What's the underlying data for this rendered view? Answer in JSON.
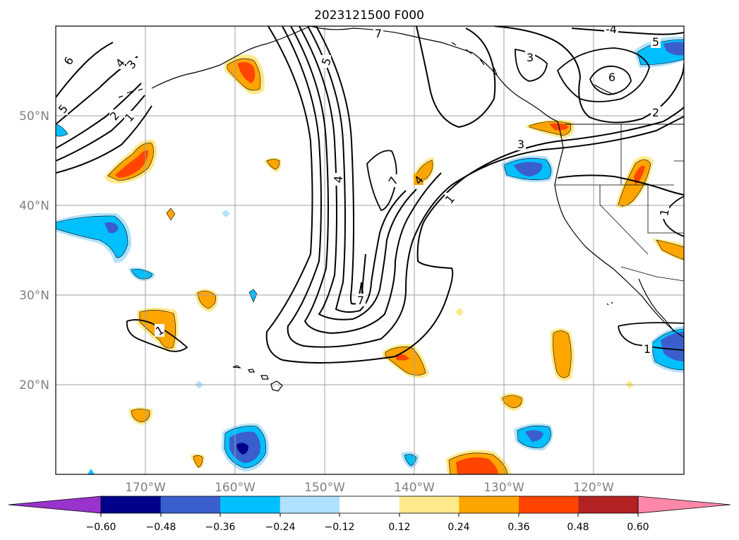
{
  "title": "2023121500 F000",
  "map": {
    "latitude_labels": [
      "20°N",
      "30°N",
      "40°N",
      "50°N"
    ],
    "longitude_labels": [
      "170°W",
      "160°W",
      "150°W",
      "140°W",
      "130°W",
      "120°W"
    ],
    "contour_labels": [
      "6",
      "5",
      "4",
      "3",
      "2",
      "1",
      "7",
      "5",
      "4",
      "7",
      "1",
      "3",
      "3",
      "6",
      "2",
      "1",
      "1",
      "1",
      "5",
      "4",
      "-4",
      "7"
    ]
  },
  "colorbar": {
    "tick_labels": [
      "−0.60",
      "−0.48",
      "−0.36",
      "−0.24",
      "−0.12",
      "0.12",
      "0.24",
      "0.36",
      "0.48",
      "0.60"
    ],
    "colors": {
      "under": "#9933cc",
      "bins": [
        "#00008b",
        "#3a5fcd",
        "#00bfff",
        "#b0e2ff",
        "#ffffff",
        "#ffe98a",
        "#ffa500",
        "#ff4500",
        "#b22222",
        "#ff88aa"
      ],
      "over": "#ff88aa"
    }
  }
}
